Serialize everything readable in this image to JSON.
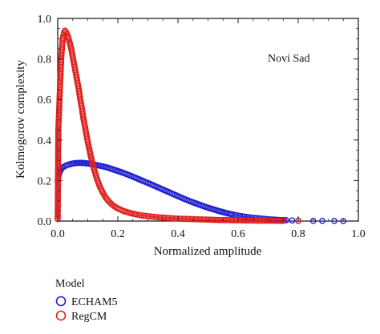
{
  "chart_data": {
    "type": "scatter",
    "title": "",
    "xlabel": "Normalized amplitude",
    "ylabel": "Kolmogorov complexity",
    "xlim": [
      0,
      1
    ],
    "ylim": [
      0,
      1
    ],
    "xticks": [
      0,
      0.2,
      0.4,
      0.6,
      0.8,
      1
    ],
    "yticks": [
      0,
      0.2,
      0.4,
      0.6,
      0.8,
      1
    ],
    "xtick_labels": [
      "0.0",
      "0.2",
      "0.4",
      "0.6",
      "0.8",
      "1.0"
    ],
    "ytick_labels": [
      "0.0",
      "0.2",
      "0.4",
      "0.6",
      "0.8",
      "1.0"
    ],
    "grid": false,
    "annotation": "Novi Sad",
    "legend": {
      "title": "Model",
      "placement": "bottom-left"
    },
    "series": [
      {
        "name": "ECHAM5",
        "color": "#1f1fd0",
        "x": [
          0.0,
          0.003,
          0.006,
          0.01,
          0.015,
          0.02,
          0.025,
          0.03,
          0.04,
          0.05,
          0.06,
          0.07,
          0.08,
          0.09,
          0.1,
          0.11,
          0.12,
          0.13,
          0.14,
          0.15,
          0.16,
          0.17,
          0.18,
          0.19,
          0.2,
          0.22,
          0.24,
          0.26,
          0.28,
          0.3,
          0.32,
          0.34,
          0.36,
          0.38,
          0.4,
          0.42,
          0.44,
          0.46,
          0.48,
          0.5,
          0.52,
          0.54,
          0.56,
          0.58,
          0.6,
          0.62,
          0.64,
          0.66,
          0.68,
          0.7,
          0.72,
          0.74,
          0.76,
          0.78,
          0.8,
          0.85,
          0.88,
          0.92,
          0.95
        ],
        "y": [
          0.2,
          0.225,
          0.24,
          0.252,
          0.262,
          0.268,
          0.272,
          0.276,
          0.28,
          0.284,
          0.286,
          0.287,
          0.287,
          0.286,
          0.284,
          0.282,
          0.279,
          0.276,
          0.273,
          0.27,
          0.266,
          0.262,
          0.257,
          0.252,
          0.247,
          0.237,
          0.225,
          0.213,
          0.2,
          0.188,
          0.175,
          0.162,
          0.149,
          0.136,
          0.123,
          0.11,
          0.098,
          0.087,
          0.076,
          0.066,
          0.057,
          0.048,
          0.04,
          0.033,
          0.027,
          0.022,
          0.018,
          0.015,
          0.012,
          0.009,
          0.007,
          0.005,
          0.004,
          0.003,
          0.002,
          0.001,
          0.001,
          0.001,
          0.0
        ]
      },
      {
        "name": "RegCM",
        "color": "#e02020",
        "x": [
          0.0,
          0.002,
          0.004,
          0.006,
          0.008,
          0.01,
          0.012,
          0.015,
          0.018,
          0.021,
          0.024,
          0.027,
          0.03,
          0.033,
          0.036,
          0.04,
          0.045,
          0.05,
          0.055,
          0.06,
          0.065,
          0.07,
          0.075,
          0.08,
          0.085,
          0.09,
          0.095,
          0.1,
          0.11,
          0.12,
          0.13,
          0.14,
          0.15,
          0.16,
          0.17,
          0.18,
          0.19,
          0.2,
          0.22,
          0.24,
          0.26,
          0.28,
          0.3,
          0.32,
          0.34,
          0.36,
          0.38,
          0.4,
          0.42,
          0.44,
          0.46,
          0.48,
          0.5,
          0.52,
          0.54,
          0.56,
          0.58,
          0.6,
          0.62,
          0.64,
          0.66,
          0.68,
          0.7,
          0.75,
          0.8
        ],
        "y": [
          0.01,
          0.45,
          0.52,
          0.6,
          0.68,
          0.75,
          0.81,
          0.87,
          0.91,
          0.93,
          0.94,
          0.935,
          0.925,
          0.915,
          0.9,
          0.88,
          0.85,
          0.81,
          0.77,
          0.73,
          0.69,
          0.65,
          0.6,
          0.56,
          0.51,
          0.47,
          0.43,
          0.39,
          0.32,
          0.26,
          0.21,
          0.17,
          0.14,
          0.115,
          0.097,
          0.082,
          0.071,
          0.062,
          0.049,
          0.04,
          0.033,
          0.028,
          0.024,
          0.021,
          0.018,
          0.016,
          0.014,
          0.012,
          0.011,
          0.01,
          0.009,
          0.008,
          0.007,
          0.006,
          0.005,
          0.005,
          0.004,
          0.004,
          0.003,
          0.003,
          0.002,
          0.002,
          0.002,
          0.001,
          0.001
        ]
      }
    ]
  }
}
